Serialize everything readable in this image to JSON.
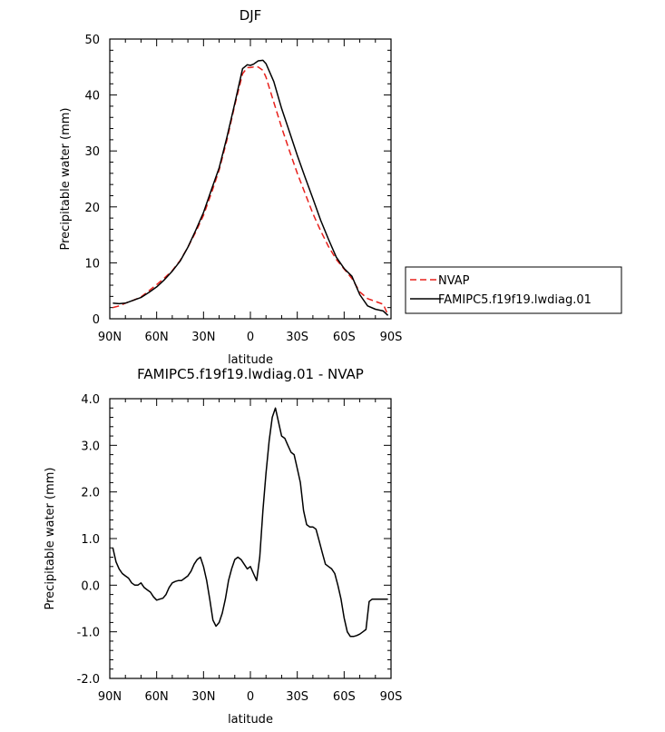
{
  "chart_data": [
    {
      "type": "line",
      "title": "DJF",
      "xlabel": "latitude",
      "ylabel": "Precipitable water (mm)",
      "xlim": [
        90,
        -90
      ],
      "ylim": [
        0,
        50
      ],
      "x_ticks": [
        90,
        60,
        30,
        0,
        -30,
        -60,
        -90
      ],
      "x_tick_labels": [
        "90N",
        "60N",
        "30N",
        "0",
        "30S",
        "60S",
        "90S"
      ],
      "y_ticks": [
        0,
        10,
        20,
        30,
        40,
        50
      ],
      "y_tick_labels": [
        "0",
        "10",
        "20",
        "30",
        "40",
        "50"
      ],
      "legend_position": "right",
      "series": [
        {
          "name": "NVAP",
          "color": "#e8211c",
          "dash": "dashed",
          "x": [
            88,
            84,
            80,
            75,
            70,
            65,
            60,
            55,
            50,
            45,
            40,
            35,
            30,
            25,
            20,
            15,
            10,
            5,
            2,
            0,
            -2,
            -5,
            -8,
            -10,
            -15,
            -20,
            -25,
            -30,
            -35,
            -40,
            -45,
            -50,
            -55,
            -60,
            -65,
            -70,
            -75,
            -80,
            -85,
            -88
          ],
          "y": [
            2.0,
            2.3,
            2.8,
            3.3,
            3.9,
            5.0,
            6.1,
            7.3,
            8.6,
            10.4,
            12.8,
            15.5,
            18.5,
            22.4,
            26.6,
            32.0,
            38.2,
            43.8,
            44.9,
            44.9,
            45.0,
            45.0,
            44.4,
            43.2,
            38.7,
            34.2,
            30.0,
            26.0,
            22.4,
            18.8,
            15.7,
            12.9,
            10.6,
            8.9,
            7.2,
            4.8,
            3.6,
            3.1,
            2.6,
            0.7
          ]
        },
        {
          "name": "FAMIPC5.f19f19.lwdiag.01",
          "color": "#000000",
          "dash": "solid",
          "x": [
            88,
            84,
            80,
            75,
            70,
            65,
            60,
            55,
            50,
            45,
            40,
            35,
            30,
            25,
            20,
            15,
            10,
            5,
            2,
            0,
            -2,
            -5,
            -8,
            -10,
            -15,
            -20,
            -25,
            -30,
            -35,
            -40,
            -45,
            -50,
            -55,
            -60,
            -65,
            -70,
            -75,
            -80,
            -85,
            -88
          ],
          "y": [
            2.8,
            2.7,
            2.8,
            3.3,
            3.8,
            4.7,
            5.7,
            7.0,
            8.5,
            10.3,
            12.8,
            15.8,
            19.0,
            23.0,
            27.0,
            32.5,
            38.5,
            44.7,
            45.4,
            45.3,
            45.5,
            46.1,
            46.2,
            45.6,
            42.4,
            37.6,
            33.4,
            29.2,
            25.3,
            21.5,
            17.6,
            14.2,
            11.0,
            9.0,
            7.6,
            4.3,
            2.3,
            1.7,
            1.4,
            0.6
          ]
        }
      ]
    },
    {
      "type": "line",
      "title": "FAMIPC5.f19f19.lwdiag.01 - NVAP",
      "xlabel": "latitude",
      "ylabel": "Precipitable water (mm)",
      "xlim": [
        90,
        -90
      ],
      "ylim": [
        -2.0,
        4.0
      ],
      "x_ticks": [
        90,
        60,
        30,
        0,
        -30,
        -60,
        -90
      ],
      "x_tick_labels": [
        "90N",
        "60N",
        "30N",
        "0",
        "30S",
        "60S",
        "90S"
      ],
      "y_ticks": [
        -2.0,
        -1.0,
        0.0,
        1.0,
        2.0,
        3.0,
        4.0
      ],
      "y_tick_labels": [
        "-2.0",
        "-1.0",
        "0.0",
        "1.0",
        "2.0",
        "3.0",
        "4.0"
      ],
      "series": [
        {
          "name": "FAMIPC5.f19f19.lwdiag.01 - NVAP",
          "color": "#000000",
          "dash": "solid",
          "x": [
            88,
            86,
            84,
            82,
            80,
            78,
            76,
            74,
            72,
            70,
            68,
            66,
            64,
            62,
            60,
            58,
            56,
            54,
            52,
            50,
            48,
            46,
            44,
            42,
            40,
            38,
            36,
            34,
            32,
            30,
            28,
            26,
            24,
            22,
            20,
            18,
            16,
            14,
            12,
            10,
            8,
            6,
            4,
            2,
            0,
            -2,
            -4,
            -6,
            -8,
            -10,
            -12,
            -14,
            -16,
            -18,
            -20,
            -22,
            -24,
            -26,
            -28,
            -30,
            -32,
            -34,
            -36,
            -38,
            -40,
            -42,
            -44,
            -46,
            -48,
            -50,
            -52,
            -54,
            -56,
            -58,
            -60,
            -62,
            -64,
            -66,
            -68,
            -70,
            -72,
            -74,
            -76,
            -78,
            -80,
            -82,
            -84,
            -86,
            -88
          ],
          "y": [
            0.8,
            0.5,
            0.35,
            0.25,
            0.2,
            0.15,
            0.05,
            0.0,
            0.0,
            0.05,
            -0.05,
            -0.1,
            -0.15,
            -0.25,
            -0.32,
            -0.3,
            -0.28,
            -0.2,
            -0.05,
            0.05,
            0.08,
            0.1,
            0.1,
            0.15,
            0.2,
            0.3,
            0.45,
            0.55,
            0.6,
            0.4,
            0.1,
            -0.3,
            -0.75,
            -0.88,
            -0.8,
            -0.6,
            -0.3,
            0.1,
            0.35,
            0.55,
            0.6,
            0.55,
            0.45,
            0.35,
            0.4,
            0.25,
            0.1,
            0.6,
            1.6,
            2.4,
            3.1,
            3.6,
            3.8,
            3.5,
            3.2,
            3.15,
            3.0,
            2.85,
            2.8,
            2.5,
            2.2,
            1.6,
            1.3,
            1.25,
            1.25,
            1.2,
            0.95,
            0.7,
            0.45,
            0.4,
            0.35,
            0.25,
            0.0,
            -0.3,
            -0.7,
            -1.0,
            -1.1,
            -1.1,
            -1.08,
            -1.05,
            -1.0,
            -0.95,
            -0.35,
            -0.3,
            -0.3,
            -0.3,
            -0.3,
            -0.3,
            -0.3
          ]
        }
      ]
    }
  ]
}
